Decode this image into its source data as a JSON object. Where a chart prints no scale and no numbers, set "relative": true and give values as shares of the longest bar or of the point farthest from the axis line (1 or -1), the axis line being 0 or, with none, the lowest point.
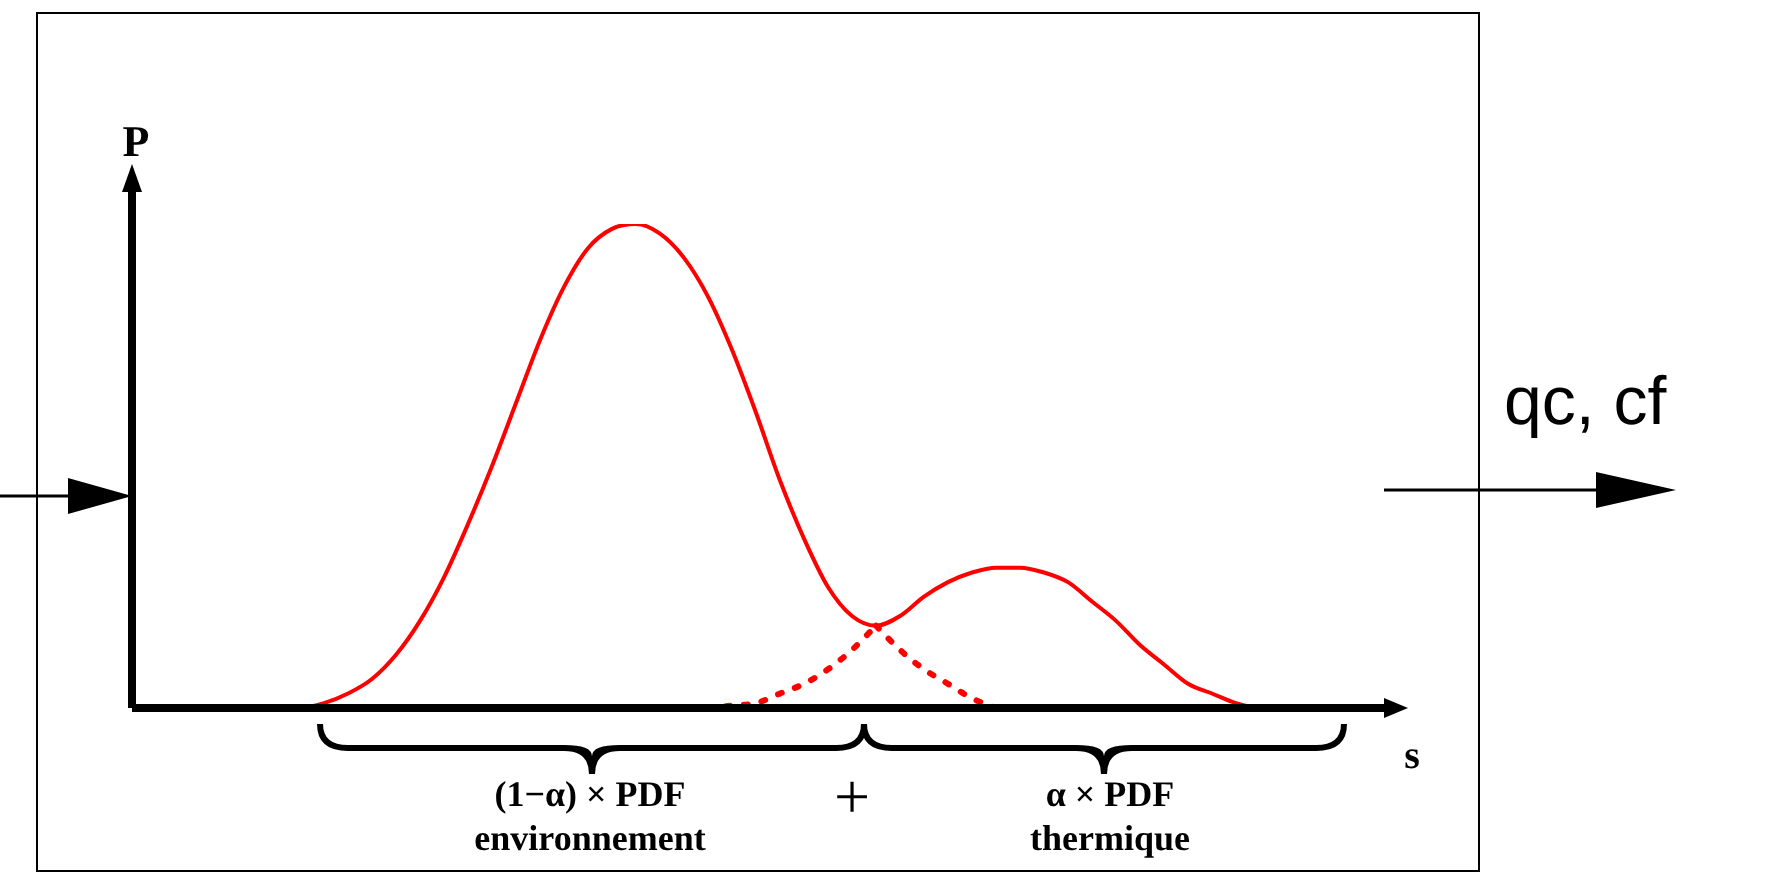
{
  "chart_data": {
    "type": "line",
    "relative": true,
    "xlabel": "s",
    "ylabel": "P",
    "categories": [
      null,
      null,
      null,
      null,
      null,
      null,
      null,
      null,
      null,
      null,
      null,
      null,
      null,
      null,
      null,
      null,
      null,
      null,
      null,
      null,
      null,
      null,
      null,
      null,
      null,
      null,
      null,
      null,
      null,
      null,
      null,
      null,
      null,
      null,
      null,
      null,
      null,
      null,
      null,
      null,
      null,
      null,
      null,
      null,
      null,
      null,
      null,
      null,
      null,
      null,
      null,
      null,
      null
    ],
    "series": [
      {
        "color": "#ff0000",
        "line_style": "solid",
        "values": [
          null,
          null,
          null,
          null,
          null,
          null,
          0,
          0,
          0.01,
          0.03,
          0.06,
          0.11,
          0.18,
          0.27,
          0.38,
          0.5,
          0.63,
          0.76,
          0.87,
          0.95,
          0.99,
          1,
          0.98,
          0.93,
          0.85,
          0.74,
          0.61,
          0.47,
          0.35,
          0.25,
          0.19,
          0.17,
          0.19,
          0.23,
          0.26,
          0.28,
          0.29,
          0.29,
          0.28,
          0.26,
          0.22,
          0.18,
          0.13,
          0.09,
          0.05,
          0.03,
          0.01,
          0,
          0,
          null,
          null,
          null,
          null
        ]
      },
      {
        "color": "#ff0000",
        "line_style": "dotted",
        "values": [
          null,
          null,
          null,
          null,
          null,
          null,
          null,
          null,
          null,
          null,
          null,
          null,
          null,
          null,
          null,
          null,
          null,
          null,
          null,
          null,
          null,
          null,
          null,
          null,
          null,
          null,
          null,
          null,
          null,
          null,
          null,
          0.17,
          0.12,
          0.08,
          0.05,
          0.02,
          0,
          null,
          null,
          null,
          null,
          null,
          null,
          null,
          null,
          null,
          null,
          null,
          null,
          null,
          null,
          null,
          null
        ]
      },
      {
        "color": "#ff0000",
        "line_style": "dotted",
        "values": [
          null,
          null,
          null,
          null,
          null,
          null,
          null,
          null,
          null,
          null,
          null,
          null,
          null,
          null,
          null,
          null,
          null,
          null,
          null,
          null,
          null,
          null,
          null,
          null,
          0,
          0.005,
          0.01,
          0.03,
          0.05,
          0.08,
          0.12,
          0.17,
          null,
          null,
          null,
          null,
          null,
          null,
          null,
          null,
          null,
          null,
          null,
          null,
          null,
          null,
          null,
          null,
          null,
          null,
          null,
          null,
          null
        ]
      }
    ],
    "annotations": [
      "(1−α) × PDF environnement",
      "+",
      "α × PDF thermique",
      "qc, cf"
    ]
  }
}
